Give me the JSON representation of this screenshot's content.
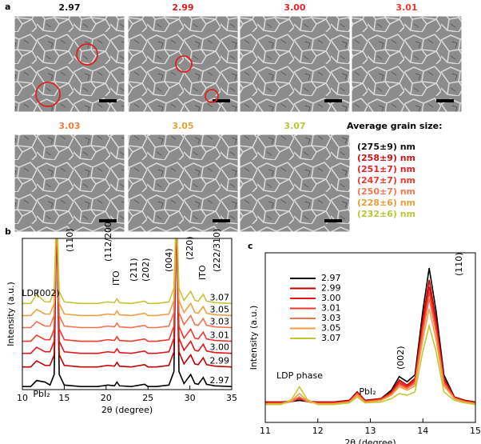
{
  "panel_a": {
    "label": "a",
    "images": [
      {
        "label": "2.97",
        "color": "#111111"
      },
      {
        "label": "2.99",
        "color": "#d42020"
      },
      {
        "label": "3.00",
        "color": "#e42528"
      },
      {
        "label": "3.01",
        "color": "#ee3a2c"
      },
      {
        "label": "3.03",
        "color": "#f07a38"
      },
      {
        "label": "3.05",
        "color": "#e8a038"
      },
      {
        "label": "3.07",
        "color": "#b8c834"
      }
    ],
    "grain_title": "Average grain size:",
    "grain_sizes": [
      {
        "text": "(275±9) nm",
        "color": "#111111"
      },
      {
        "text": "(258±9) nm",
        "color": "#c81818"
      },
      {
        "text": "(251±7) nm",
        "color": "#e42528"
      },
      {
        "text": "(247±7) nm",
        "color": "#ee3a2c"
      },
      {
        "text": "(250±7) nm",
        "color": "#f07a50"
      },
      {
        "text": "(228±6) nm",
        "color": "#e8a038"
      },
      {
        "text": "(232±6) nm",
        "color": "#b8c834"
      }
    ]
  },
  "chart_data": [
    {
      "type": "line",
      "panel_label": "b",
      "xlabel": "2θ (degree)",
      "ylabel": "Intensity (a.u.)",
      "x": [
        10,
        11,
        11.7,
        12.7,
        13.3,
        13.8,
        14.1,
        14.4,
        15,
        17,
        19,
        20.2,
        21,
        21.3,
        21.6,
        23,
        24.6,
        25,
        26,
        27.5,
        28.1,
        28.4,
        28.7,
        29.3,
        30.1,
        30.6,
        31,
        31.6,
        32,
        33,
        35
      ],
      "xlim": [
        10,
        35
      ],
      "xticks": [
        10,
        15,
        20,
        25,
        30,
        35
      ],
      "ylim": [
        0,
        100
      ],
      "series": [
        {
          "name": "2.97",
          "color": "#000000",
          "values": [
            2,
            2,
            6,
            5,
            3,
            10,
            120,
            10,
            3,
            2,
            2,
            3,
            2.5,
            5,
            2.5,
            2,
            3.5,
            2,
            2,
            3,
            12,
            120,
            12,
            4,
            10,
            4,
            3.5,
            8,
            3.5,
            2.5,
            2
          ]
        },
        {
          "name": "2.99",
          "color": "#c00000",
          "values": [
            15,
            15,
            19,
            16,
            16,
            23,
            120,
            23,
            16,
            15,
            15,
            16,
            15.5,
            18,
            15.5,
            15,
            16.5,
            15,
            15,
            16,
            25,
            120,
            25,
            17,
            23,
            17,
            16.5,
            21,
            16.5,
            15.5,
            15
          ]
        },
        {
          "name": "3.00",
          "color": "#e8141a",
          "values": [
            24,
            24,
            28,
            25,
            25,
            32,
            120,
            32,
            25,
            24,
            24,
            25,
            24.5,
            27,
            24.5,
            24,
            25.5,
            24,
            24,
            25,
            34,
            120,
            34,
            26,
            32,
            26,
            25.5,
            30,
            25.5,
            24.5,
            24
          ]
        },
        {
          "name": "3.01",
          "color": "#f0382c",
          "values": [
            32,
            32,
            36,
            33,
            33,
            40,
            120,
            40,
            33,
            32,
            32,
            33,
            32.5,
            35,
            32.5,
            32,
            33.5,
            32,
            32,
            33,
            42,
            120,
            42,
            34,
            40,
            34,
            33.5,
            38,
            33.5,
            32.5,
            32
          ]
        },
        {
          "name": "3.03",
          "color": "#f5724a",
          "values": [
            41,
            41,
            45,
            42,
            42,
            49,
            120,
            49,
            42,
            41,
            41,
            42,
            41.5,
            44,
            41.5,
            41,
            42.5,
            41,
            41,
            42,
            51,
            120,
            51,
            43,
            49,
            43,
            42.5,
            47,
            42.5,
            41.5,
            41
          ]
        },
        {
          "name": "3.05",
          "color": "#f0a040",
          "values": [
            49,
            49,
            53,
            50,
            50,
            57,
            120,
            57,
            50,
            49,
            49,
            50,
            49.5,
            52,
            49.5,
            49,
            50.5,
            49,
            49,
            50,
            59,
            120,
            59,
            51,
            57,
            51,
            50.5,
            55,
            50.5,
            49.5,
            49
          ]
        },
        {
          "name": "3.07",
          "color": "#c5c535",
          "values": [
            57,
            57,
            63,
            58,
            58,
            65,
            120,
            65,
            58,
            57,
            57,
            58,
            57.5,
            60,
            57.5,
            57,
            58.5,
            57,
            57,
            58,
            67,
            120,
            67,
            59,
            65,
            59,
            58.5,
            63,
            58.5,
            57.5,
            57
          ]
        }
      ],
      "annotations": [
        "LDP",
        "(002)",
        "PbI₂",
        "(110)",
        "(112/200)",
        "ITO",
        "(211)",
        "(202)",
        "(004)",
        "(220)",
        "ITO",
        "(222/310)"
      ]
    },
    {
      "type": "line",
      "panel_label": "c",
      "xlabel": "2θ (degree)",
      "ylabel": "Intensity (a.u.)",
      "x": [
        11,
        11.3,
        11.5,
        11.65,
        11.8,
        12,
        12.3,
        12.6,
        12.75,
        12.9,
        13.2,
        13.4,
        13.55,
        13.7,
        13.85,
        14.0,
        14.12,
        14.25,
        14.4,
        14.6,
        14.8,
        15
      ],
      "xlim": [
        11,
        15
      ],
      "xticks": [
        11,
        12,
        13,
        14,
        15
      ],
      "ylim": [
        0,
        100
      ],
      "legend": "upper left",
      "series": [
        {
          "name": "2.97",
          "color": "#000000",
          "values": [
            12,
            12,
            12.3,
            13,
            12.3,
            12,
            12,
            13,
            18,
            13,
            14,
            19,
            27,
            24,
            28,
            66,
            91,
            66,
            28,
            15,
            13,
            12
          ]
        },
        {
          "name": "2.99",
          "color": "#c00000",
          "values": [
            12,
            12,
            12.6,
            14,
            12.6,
            12,
            12,
            13,
            18,
            13,
            14,
            18,
            25,
            22,
            26,
            61,
            84,
            61,
            26,
            15,
            13,
            12
          ]
        },
        {
          "name": "3.00",
          "color": "#e8141a",
          "values": [
            11.5,
            11.5,
            12.3,
            14,
            12.3,
            11.5,
            11.5,
            12.5,
            17,
            12.5,
            13.5,
            17.5,
            24,
            21,
            25,
            58,
            80,
            58,
            25,
            14.5,
            12.5,
            11.5
          ]
        },
        {
          "name": "3.01",
          "color": "#f0382c",
          "values": [
            11.5,
            11.5,
            12.5,
            15,
            12.5,
            11.5,
            11.5,
            12.5,
            17,
            12.5,
            13.5,
            17,
            23,
            20.5,
            24,
            56,
            77,
            56,
            24,
            14.5,
            12.5,
            11.5
          ]
        },
        {
          "name": "3.03",
          "color": "#f5724a",
          "values": [
            11,
            11,
            12.2,
            15,
            12.2,
            11,
            11,
            12,
            17,
            12,
            13,
            16.5,
            22,
            20,
            23,
            53,
            73,
            53,
            23,
            14,
            12,
            11
          ]
        },
        {
          "name": "3.05",
          "color": "#f0a040",
          "values": [
            11,
            11,
            12.8,
            17,
            12.8,
            11,
            11,
            12,
            16,
            12,
            13,
            16,
            21,
            19,
            21.5,
            49,
            67,
            49,
            21.5,
            14,
            12,
            11
          ]
        },
        {
          "name": "3.07",
          "color": "#c5c535",
          "values": [
            10.5,
            10.5,
            13.5,
            21,
            13.5,
            10.5,
            10.5,
            11.5,
            15,
            11.5,
            12,
            14,
            17,
            16,
            18,
            42,
            57,
            42,
            18,
            13,
            11.5,
            10.5
          ]
        }
      ],
      "annotations": [
        "LDP phase",
        "PbI₂",
        "(002)",
        "(110)"
      ]
    }
  ]
}
